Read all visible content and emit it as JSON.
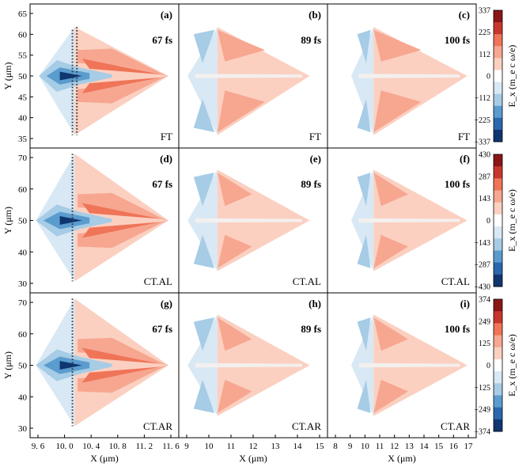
{
  "chart_data": {
    "type": "heatmap",
    "description_units": "E_x field maps, X and Y in μm",
    "colors": {
      "pos_light": "#fbd0c1",
      "pos_mid": "#f7a690",
      "pos_strong": "#ef7458",
      "pos_dark": "#8a1616",
      "neg_light": "#d8e8f4",
      "neg_mid": "#a6cce6",
      "neg_strong": "#5b9ccf",
      "neg_dark": "#0e3670",
      "white": "#ffffff"
    },
    "x_label": "X (μm)",
    "y_label": "Y (μm)",
    "rows": [
      {
        "name": "FT",
        "y_ticks": [
          "65",
          "60",
          "55",
          "50",
          "45",
          "40",
          "35"
        ],
        "colorbar": {
          "label": "E_x (m_e c ω/e)",
          "ticks": [
            "337",
            "225",
            "112",
            "0",
            "−112",
            "−225",
            "−337"
          ]
        },
        "panels": [
          {
            "label": "(a)",
            "time": "67 fs",
            "target": "FT"
          },
          {
            "label": "(b)",
            "time": "89 fs",
            "target": "FT"
          },
          {
            "label": "(c)",
            "time": "100 fs",
            "target": "FT"
          }
        ]
      },
      {
        "name": "CT.AL",
        "y_ticks": [
          "70",
          "60",
          "50",
          "40",
          "30"
        ],
        "colorbar": {
          "label": "E_x (m_e c ω/e)",
          "ticks": [
            "430",
            "287",
            "143",
            "0",
            "−143",
            "−287",
            "−430"
          ]
        },
        "panels": [
          {
            "label": "(d)",
            "time": "67 fs",
            "target": "CT.AL"
          },
          {
            "label": "(e)",
            "time": "89 fs",
            "target": "CT.AL"
          },
          {
            "label": "(f)",
            "time": "100 fs",
            "target": "CT.AL"
          }
        ]
      },
      {
        "name": "CT.AR",
        "y_ticks": [
          "70",
          "60",
          "50",
          "40",
          "30"
        ],
        "colorbar": {
          "label": "E_x (m_e c ω/e)",
          "ticks": [
            "374",
            "249",
            "125",
            "0",
            "−125",
            "−249",
            "−374"
          ]
        },
        "panels": [
          {
            "label": "(g)",
            "time": "67 fs",
            "target": "CT.AR"
          },
          {
            "label": "(h)",
            "time": "89 fs",
            "target": "CT.AR"
          },
          {
            "label": "(i)",
            "time": "100 fs",
            "target": "CT.AR"
          }
        ]
      }
    ],
    "columns": [
      {
        "x_ticks": [
          "9. 6",
          "10. 0",
          "10. 4",
          "10. 8",
          "11. 2",
          "11. 6"
        ]
      },
      {
        "x_ticks": [
          "9",
          "10",
          "11",
          "12",
          "13",
          "14",
          "15"
        ]
      },
      {
        "x_ticks": [
          "8",
          "9",
          "10",
          "11",
          "12",
          "13",
          "14",
          "15",
          "16",
          "17"
        ]
      }
    ]
  }
}
